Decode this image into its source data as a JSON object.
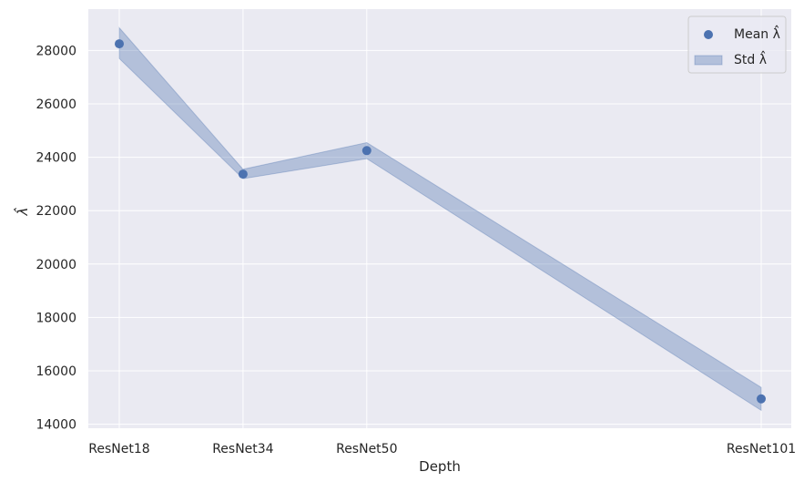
{
  "chart_data": {
    "type": "line",
    "categories": [
      "ResNet18",
      "ResNet34",
      "ResNet50",
      "ResNet101"
    ],
    "x": [
      18,
      34,
      50,
      101
    ],
    "series": [
      {
        "name": "Mean λ̂",
        "values": [
          28250,
          23370,
          24250,
          14950
        ]
      }
    ],
    "std_band": {
      "name": "Std λ̂",
      "lower": [
        27700,
        23200,
        23950,
        14520
      ],
      "upper": [
        28850,
        23550,
        24550,
        15380
      ]
    },
    "xlabel": "Depth",
    "ylabel": "λ̂",
    "yticks": [
      "14000",
      "16000",
      "18000",
      "20000",
      "22000",
      "24000",
      "26000",
      "28000"
    ],
    "ylim": [
      13850,
      29550
    ],
    "grid": true,
    "legend_position": "top-right",
    "colors": {
      "background": "#eaeaf2",
      "grid": "#ffffff",
      "point": "#4c72b0",
      "band": "#4c72b0"
    }
  }
}
